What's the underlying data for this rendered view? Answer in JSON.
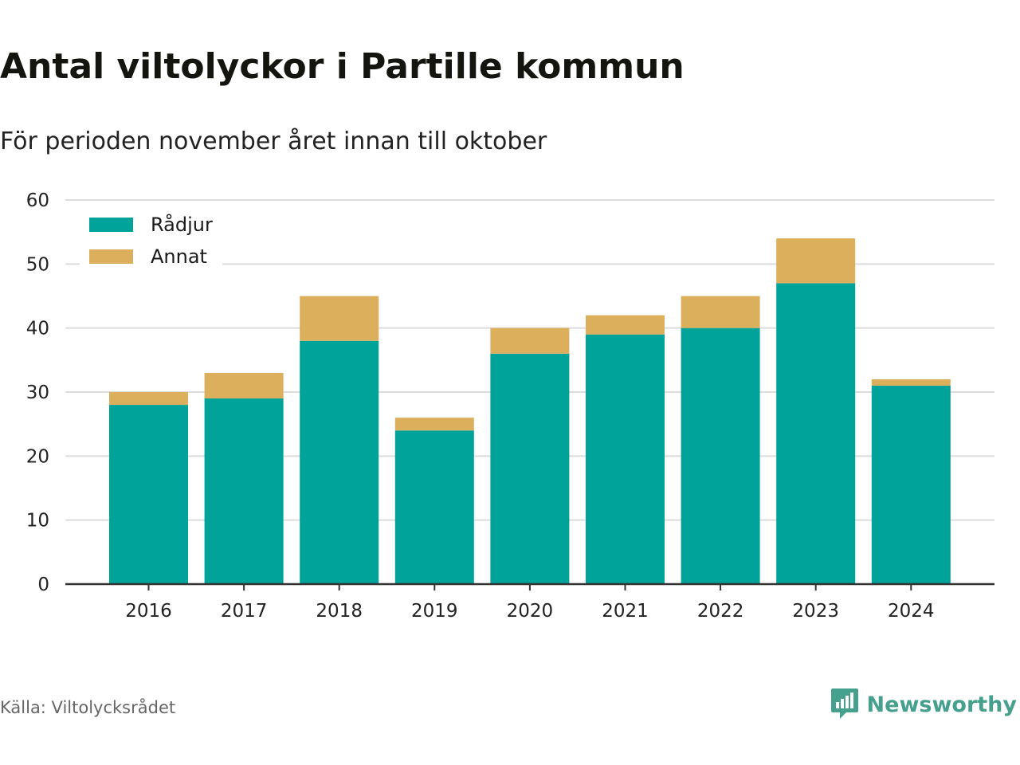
{
  "title": "Antal viltolyckor i Partille kommun",
  "subtitle": "För perioden november året innan till oktober",
  "source": "Källa: Viltolycksrådet",
  "brand": {
    "name": "Newsworthy",
    "icon": "newsworthy-logo-icon",
    "color": "#46a08e"
  },
  "chart_data": {
    "type": "bar",
    "stacked": true,
    "categories": [
      "2016",
      "2017",
      "2018",
      "2019",
      "2020",
      "2021",
      "2022",
      "2023",
      "2024"
    ],
    "series": [
      {
        "name": "Rådjur",
        "color": "#00a39a",
        "values": [
          28,
          29,
          38,
          24,
          36,
          39,
          40,
          47,
          31
        ]
      },
      {
        "name": "Annat",
        "color": "#dbaf5b",
        "values": [
          2,
          4,
          7,
          2,
          4,
          3,
          5,
          7,
          1
        ]
      }
    ],
    "ylim": [
      0,
      60
    ],
    "yticks": [
      0,
      10,
      20,
      30,
      40,
      50,
      60
    ],
    "grid": true,
    "legend_position": "top-left"
  }
}
